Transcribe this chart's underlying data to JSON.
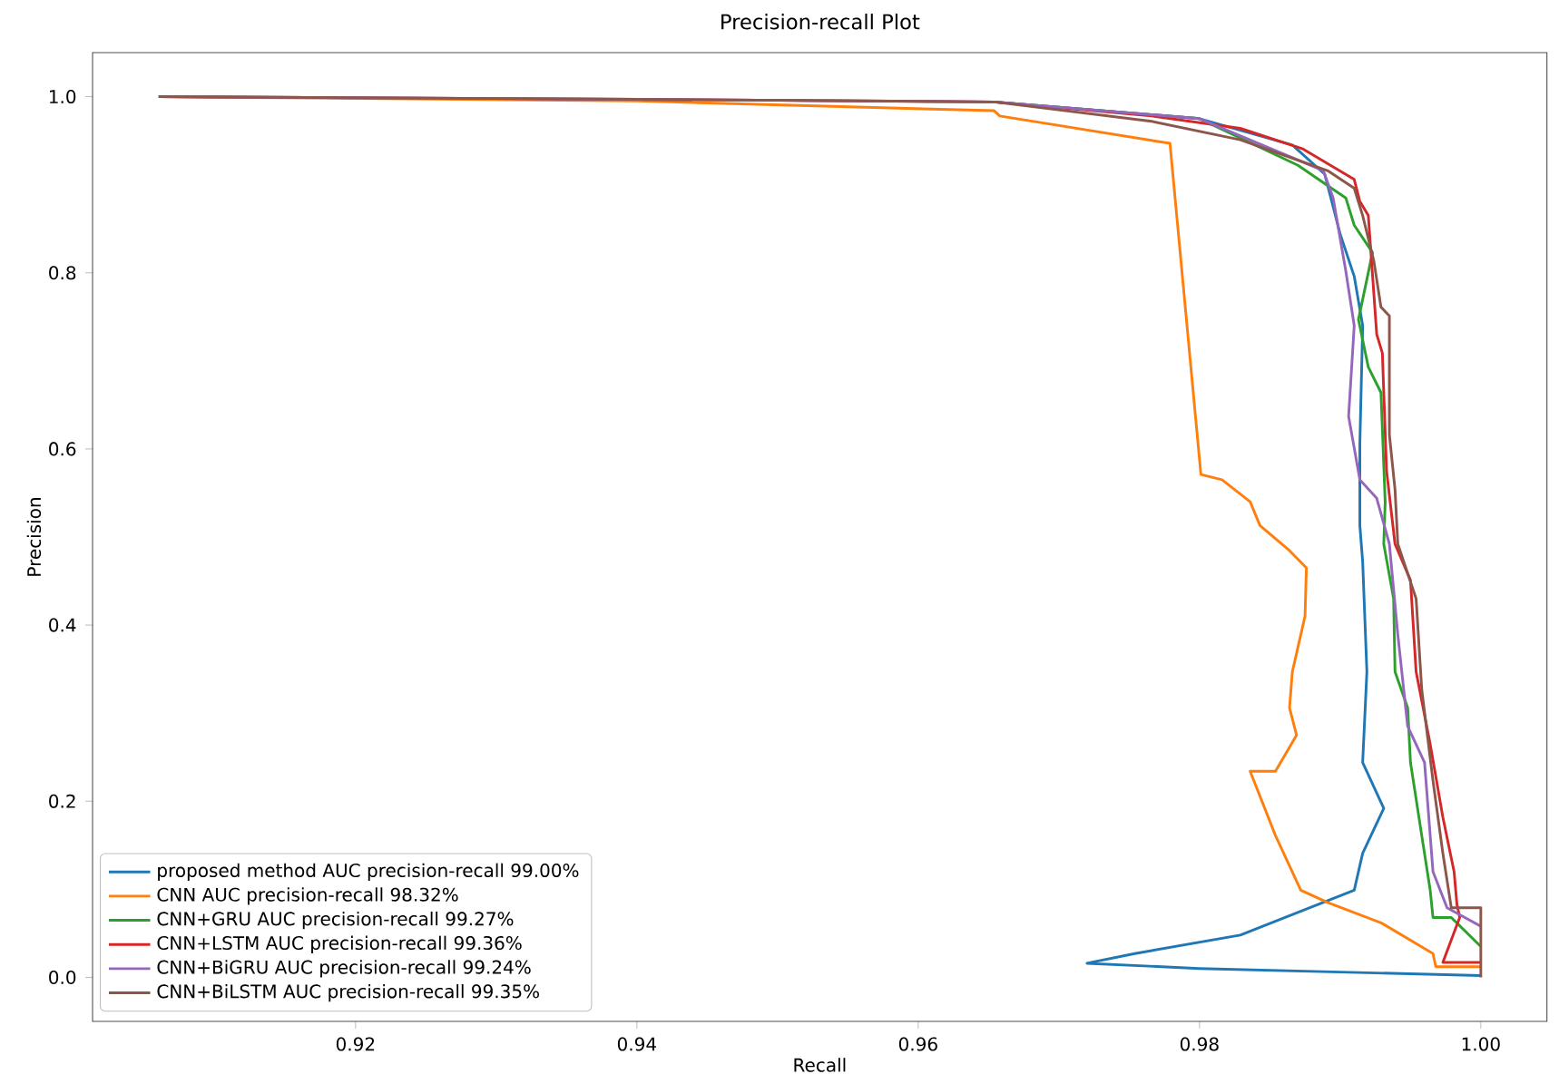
{
  "chart_data": {
    "type": "line",
    "title": "Precision-recall Plot",
    "xlabel": "Recall",
    "ylabel": "Precision",
    "xlim": [
      0.9013,
      1.0047
    ],
    "ylim": [
      -0.05,
      1.05
    ],
    "xticks": [
      0.92,
      0.94,
      0.96,
      0.98,
      {
        "value": 1.0,
        "label": "1.00"
      }
    ],
    "yticks": [
      {
        "value": 0,
        "label": "0.0"
      },
      0.2,
      0.4,
      0.6,
      0.8,
      {
        "value": 1.0,
        "label": "1.0"
      }
    ],
    "legend": "bottom left",
    "series": [
      {
        "name": "proposed method AUC precision-recall 99.00%",
        "color": "#1f77b4",
        "x": [
          0.9654,
          0.98,
          0.9866,
          0.9889,
          0.99,
          0.991,
          0.9916,
          0.9914,
          0.9914,
          0.9916,
          0.9919,
          0.9916,
          0.9931,
          0.9916,
          0.991,
          0.9829,
          0.9754,
          0.972,
          0.98,
          0.99,
          1.0
        ],
        "values": [
          0.994,
          0.975,
          0.945,
          0.912,
          0.844,
          0.796,
          0.74,
          0.606,
          0.513,
          0.472,
          0.347,
          0.244,
          0.192,
          0.141,
          0.099,
          0.048,
          0.027,
          0.016,
          0.01,
          0.006,
          0.002
        ]
      },
      {
        "name": "CNN AUC precision-recall 98.32%",
        "color": "#ff7f0e",
        "x": [
          0.906,
          0.94,
          0.9654,
          0.9658,
          0.9779,
          0.9801,
          0.9816,
          0.9836,
          0.9843,
          0.9863,
          0.9876,
          0.9875,
          0.9866,
          0.9864,
          0.9869,
          0.9854,
          0.9836,
          0.9854,
          0.9872,
          0.9891,
          0.9929,
          0.9966,
          0.9968,
          1.0
        ],
        "values": [
          1.0,
          0.995,
          0.984,
          0.978,
          0.947,
          0.571,
          0.565,
          0.54,
          0.513,
          0.486,
          0.465,
          0.41,
          0.347,
          0.306,
          0.275,
          0.234,
          0.234,
          0.161,
          0.099,
          0.085,
          0.062,
          0.027,
          0.012,
          0.012
        ]
      },
      {
        "name": "CNN+GRU AUC precision-recall 99.27%",
        "color": "#2ca02c",
        "x": [
          0.9654,
          0.98,
          0.987,
          0.9904,
          0.991,
          0.9923,
          0.9913,
          0.992,
          0.9929,
          0.9932,
          0.9931,
          0.9938,
          0.9939,
          0.9948,
          0.995,
          0.9958,
          0.9964,
          0.9966,
          0.9979,
          1.0
        ],
        "values": [
          0.994,
          0.975,
          0.922,
          0.885,
          0.854,
          0.823,
          0.747,
          0.693,
          0.664,
          0.54,
          0.492,
          0.43,
          0.347,
          0.306,
          0.244,
          0.161,
          0.099,
          0.068,
          0.068,
          0.035
        ]
      },
      {
        "name": "CNN+LSTM AUC precision-recall 99.36%",
        "color": "#d62728",
        "x": [
          0.906,
          0.94,
          0.9654,
          0.9766,
          0.9829,
          0.9873,
          0.991,
          0.9914,
          0.992,
          0.9926,
          0.993,
          0.9933,
          0.9939,
          0.995,
          0.9954,
          0.9964,
          0.9973,
          0.9981,
          0.9983,
          0.9985,
          0.9973,
          1.0
        ],
        "values": [
          1.0,
          0.997,
          0.994,
          0.978,
          0.964,
          0.941,
          0.906,
          0.881,
          0.865,
          0.73,
          0.709,
          0.575,
          0.492,
          0.451,
          0.347,
          0.265,
          0.182,
          0.12,
          0.083,
          0.068,
          0.017,
          0.017
        ]
      },
      {
        "name": "CNN+BiGRU AUC precision-recall 99.24%",
        "color": "#9467bd",
        "x": [
          0.906,
          0.94,
          0.9654,
          0.98,
          0.9888,
          0.9895,
          0.9904,
          0.991,
          0.9906,
          0.9914,
          0.9926,
          0.9935,
          0.9941,
          0.9948,
          0.996,
          0.9966,
          0.9976,
          1.0
        ],
        "values": [
          1.0,
          0.997,
          0.994,
          0.975,
          0.916,
          0.885,
          0.802,
          0.74,
          0.637,
          0.565,
          0.544,
          0.492,
          0.389,
          0.285,
          0.244,
          0.12,
          0.079,
          0.058
        ]
      },
      {
        "name": "CNN+BiLSTM AUC precision-recall 99.35%",
        "color": "#8c564b",
        "x": [
          0.906,
          0.94,
          0.9654,
          0.9766,
          0.9829,
          0.9891,
          0.991,
          0.9916,
          0.9924,
          0.9929,
          0.9935,
          0.9935,
          0.9939,
          0.9941,
          0.9954,
          0.9958,
          0.9966,
          0.9973,
          0.9979,
          1.0,
          1.0
        ],
        "values": [
          1.0,
          0.997,
          0.994,
          0.972,
          0.951,
          0.916,
          0.896,
          0.865,
          0.813,
          0.761,
          0.751,
          0.616,
          0.554,
          0.492,
          0.43,
          0.327,
          0.223,
          0.141,
          0.079,
          0.079,
          0.0
        ]
      }
    ]
  }
}
